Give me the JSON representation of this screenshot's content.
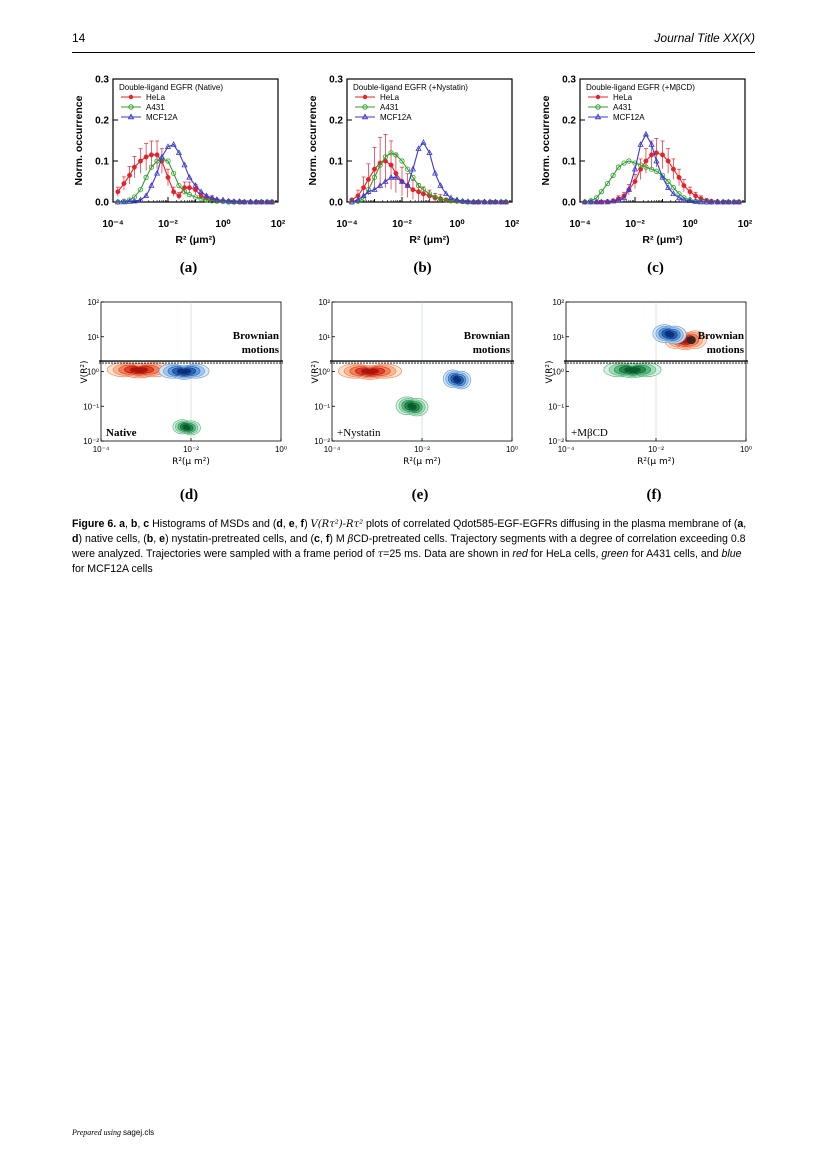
{
  "header": {
    "page_number": "14",
    "journal": "Journal Title XX(X)"
  },
  "footer": {
    "prepared": "Prepared using ",
    "cls": "sagej.cls"
  },
  "caption": {
    "label": "Figure 6.",
    "text": [
      {
        "t": "b",
        "v": "a"
      },
      {
        "t": "n",
        "v": ", "
      },
      {
        "t": "b",
        "v": "b"
      },
      {
        "t": "n",
        "v": ", "
      },
      {
        "t": "b",
        "v": "c"
      },
      {
        "t": "n",
        "v": " Histograms of MSDs and ("
      },
      {
        "t": "b",
        "v": "d"
      },
      {
        "t": "n",
        "v": ", "
      },
      {
        "t": "b",
        "v": "e"
      },
      {
        "t": "n",
        "v": ", "
      },
      {
        "t": "b",
        "v": "f"
      },
      {
        "t": "n",
        "v": ") "
      },
      {
        "t": "m",
        "v": "V(Rτ²)-Rτ²"
      },
      {
        "t": "n",
        "v": " plots of correlated Qdot585-EGF-EGFRs diffusing in the plasma membrane of ("
      },
      {
        "t": "b",
        "v": "a"
      },
      {
        "t": "n",
        "v": ", "
      },
      {
        "t": "b",
        "v": "d"
      },
      {
        "t": "n",
        "v": ") native cells, ("
      },
      {
        "t": "b",
        "v": "b"
      },
      {
        "t": "n",
        "v": ", "
      },
      {
        "t": "b",
        "v": "e"
      },
      {
        "t": "n",
        "v": ") nystatin-pretreated cells, and ("
      },
      {
        "t": "b",
        "v": "c"
      },
      {
        "t": "n",
        "v": ", "
      },
      {
        "t": "b",
        "v": "f"
      },
      {
        "t": "n",
        "v": ") M "
      },
      {
        "t": "m",
        "v": "β"
      },
      {
        "t": "n",
        "v": "CD-pretreated cells. Trajectory segments with a degree of correlation exceeding 0.8 were analyzed. Trajectories were sampled with a frame period of "
      },
      {
        "t": "m",
        "v": "τ"
      },
      {
        "t": "n",
        "v": "=25 ms. Data are shown in "
      },
      {
        "t": "i",
        "v": "red"
      },
      {
        "t": "n",
        "v": " for HeLa cells, "
      },
      {
        "t": "i",
        "v": "green"
      },
      {
        "t": "n",
        "v": " for A431 cells, and "
      },
      {
        "t": "i",
        "v": "blue"
      },
      {
        "t": "n",
        "v": " for MCF12A cells"
      }
    ]
  },
  "colors": {
    "hela": "#e8202a",
    "a431": "#2ca02c",
    "mcf12a": "#3a3ad0"
  },
  "chart_data": [
    {
      "panel": "(a)",
      "type": "line",
      "legend_title": "Double-ligand EGFR (Native)",
      "xlabel": "R² (μm²)",
      "ylabel": "Norm. occurrence",
      "xscale": "log",
      "xlim": [
        0.0001,
        100
      ],
      "ylim": [
        0,
        0.3
      ],
      "xticks": [
        "10⁻⁴",
        "10⁻²",
        "10⁰",
        "10²"
      ],
      "yticks": [
        "0.0",
        "0.1",
        "0.2",
        "0.3"
      ],
      "legend_position": "top-left",
      "series": [
        {
          "name": "HeLa",
          "x": [
            0.00015,
            0.00025,
            0.0004,
            0.0006,
            0.001,
            0.0016,
            0.0025,
            0.004,
            0.006,
            0.01,
            0.016,
            0.025,
            0.04,
            0.06,
            0.1,
            0.16,
            0.25,
            0.4,
            0.6,
            1,
            1.6,
            2.5,
            4,
            6,
            10,
            16,
            25,
            40,
            60
          ],
          "y": [
            0.025,
            0.045,
            0.065,
            0.085,
            0.1,
            0.11,
            0.115,
            0.115,
            0.1,
            0.06,
            0.025,
            0.015,
            0.035,
            0.035,
            0.03,
            0.015,
            0.01,
            0.008,
            0.005,
            0.003,
            0.002,
            0.001,
            0.001,
            0,
            0,
            0,
            0,
            0,
            0
          ]
        },
        {
          "name": "A431",
          "x": [
            0.00015,
            0.00025,
            0.0004,
            0.0006,
            0.001,
            0.0016,
            0.0025,
            0.004,
            0.006,
            0.01,
            0.016,
            0.025,
            0.04,
            0.06,
            0.1,
            0.16,
            0.25,
            0.4,
            0.6,
            1,
            1.6,
            2.5,
            4,
            6,
            10,
            16,
            25,
            40,
            60
          ],
          "y": [
            0,
            0.002,
            0.005,
            0.012,
            0.03,
            0.06,
            0.085,
            0.1,
            0.105,
            0.1,
            0.07,
            0.04,
            0.025,
            0.018,
            0.012,
            0.008,
            0.005,
            0.003,
            0.002,
            0.001,
            0,
            0,
            0,
            0,
            0,
            0,
            0,
            0,
            0
          ]
        },
        {
          "name": "MCF12A",
          "x": [
            0.00015,
            0.00025,
            0.0004,
            0.0006,
            0.001,
            0.0016,
            0.0025,
            0.004,
            0.006,
            0.01,
            0.016,
            0.025,
            0.04,
            0.06,
            0.1,
            0.16,
            0.25,
            0.4,
            0.6,
            1,
            1.6,
            2.5,
            4,
            6,
            10,
            16,
            25,
            40,
            60
          ],
          "y": [
            0,
            0,
            0.001,
            0.002,
            0.005,
            0.015,
            0.04,
            0.07,
            0.11,
            0.135,
            0.14,
            0.12,
            0.09,
            0.06,
            0.04,
            0.025,
            0.015,
            0.01,
            0.006,
            0.004,
            0.002,
            0.001,
            0.001,
            0,
            0,
            0,
            0,
            0,
            0
          ]
        }
      ]
    },
    {
      "panel": "(b)",
      "type": "line",
      "legend_title": "Double-ligand EGFR (+Nystatin)",
      "xlabel": "R² (μm²)",
      "ylabel": "Norm. occurrence",
      "xscale": "log",
      "xlim": [
        0.0001,
        100
      ],
      "ylim": [
        0,
        0.3
      ],
      "xticks": [
        "10⁻⁴",
        "10⁻²",
        "10⁰",
        "10²"
      ],
      "yticks": [
        "0.0",
        "0.1",
        "0.2",
        "0.3"
      ],
      "legend_position": "top-left",
      "series": [
        {
          "name": "HeLa",
          "x": [
            0.00015,
            0.00025,
            0.0004,
            0.0006,
            0.001,
            0.0016,
            0.0025,
            0.004,
            0.006,
            0.01,
            0.016,
            0.025,
            0.04,
            0.06,
            0.1,
            0.16,
            0.25,
            0.4,
            0.6,
            1,
            1.6,
            2.5,
            4,
            6,
            10,
            16,
            25,
            40,
            60
          ],
          "y": [
            0.005,
            0.015,
            0.035,
            0.055,
            0.08,
            0.095,
            0.1,
            0.09,
            0.07,
            0.05,
            0.04,
            0.03,
            0.025,
            0.02,
            0.015,
            0.01,
            0.008,
            0.005,
            0.003,
            0.002,
            0.001,
            0,
            0,
            0,
            0,
            0,
            0,
            0,
            0
          ]
        },
        {
          "name": "A431",
          "x": [
            0.00015,
            0.00025,
            0.0004,
            0.0006,
            0.001,
            0.0016,
            0.0025,
            0.004,
            0.006,
            0.01,
            0.016,
            0.025,
            0.04,
            0.06,
            0.1,
            0.16,
            0.25,
            0.4,
            0.6,
            1,
            1.6,
            2.5,
            4,
            6,
            10,
            16,
            25,
            40,
            60
          ],
          "y": [
            0,
            0.002,
            0.008,
            0.03,
            0.06,
            0.09,
            0.11,
            0.12,
            0.115,
            0.1,
            0.08,
            0.06,
            0.04,
            0.03,
            0.02,
            0.012,
            0.008,
            0.005,
            0.003,
            0.002,
            0.001,
            0,
            0,
            0,
            0,
            0,
            0,
            0,
            0
          ]
        },
        {
          "name": "MCF12A",
          "x": [
            0.00015,
            0.00025,
            0.0004,
            0.0006,
            0.001,
            0.0016,
            0.0025,
            0.004,
            0.006,
            0.01,
            0.016,
            0.025,
            0.04,
            0.06,
            0.1,
            0.16,
            0.25,
            0.4,
            0.6,
            1,
            1.6,
            2.5,
            4,
            6,
            10,
            16,
            25,
            40,
            60
          ],
          "y": [
            0,
            0.005,
            0.015,
            0.025,
            0.03,
            0.04,
            0.05,
            0.06,
            0.06,
            0.05,
            0.04,
            0.08,
            0.13,
            0.145,
            0.12,
            0.07,
            0.04,
            0.02,
            0.01,
            0.005,
            0.002,
            0.001,
            0,
            0,
            0,
            0,
            0,
            0,
            0
          ]
        }
      ]
    },
    {
      "panel": "(c)",
      "type": "line",
      "legend_title": "Double-ligand EGFR (+MβCD)",
      "xlabel": "R² (μm²)",
      "ylabel": "Norm. occurrence",
      "xscale": "log",
      "xlim": [
        0.0001,
        100
      ],
      "ylim": [
        0,
        0.3
      ],
      "xticks": [
        "10⁻⁴",
        "10⁻²",
        "10⁰",
        "10²"
      ],
      "yticks": [
        "0.0",
        "0.1",
        "0.2",
        "0.3"
      ],
      "legend_position": "top-left",
      "series": [
        {
          "name": "HeLa",
          "x": [
            0.00015,
            0.00025,
            0.0004,
            0.0006,
            0.001,
            0.0016,
            0.0025,
            0.004,
            0.006,
            0.01,
            0.016,
            0.025,
            0.04,
            0.06,
            0.1,
            0.16,
            0.25,
            0.4,
            0.6,
            1,
            1.6,
            2.5,
            4,
            6,
            10,
            16,
            25,
            40,
            60
          ],
          "y": [
            0,
            0,
            0,
            0,
            0.001,
            0.003,
            0.008,
            0.015,
            0.03,
            0.05,
            0.08,
            0.1,
            0.115,
            0.12,
            0.115,
            0.1,
            0.08,
            0.06,
            0.04,
            0.025,
            0.015,
            0.008,
            0.004,
            0.002,
            0.001,
            0,
            0,
            0,
            0
          ]
        },
        {
          "name": "A431",
          "x": [
            0.00015,
            0.00025,
            0.0004,
            0.0006,
            0.001,
            0.0016,
            0.0025,
            0.004,
            0.006,
            0.01,
            0.016,
            0.025,
            0.04,
            0.06,
            0.1,
            0.16,
            0.25,
            0.4,
            0.6,
            1,
            1.6,
            2.5,
            4,
            6,
            10,
            16,
            25,
            40,
            60
          ],
          "y": [
            0,
            0.003,
            0.01,
            0.025,
            0.045,
            0.065,
            0.085,
            0.095,
            0.1,
            0.095,
            0.09,
            0.085,
            0.08,
            0.075,
            0.065,
            0.05,
            0.035,
            0.02,
            0.01,
            0.005,
            0.002,
            0.001,
            0,
            0,
            0,
            0,
            0,
            0,
            0
          ]
        },
        {
          "name": "MCF12A",
          "x": [
            0.00015,
            0.00025,
            0.0004,
            0.0006,
            0.001,
            0.0016,
            0.0025,
            0.004,
            0.006,
            0.01,
            0.016,
            0.025,
            0.04,
            0.06,
            0.1,
            0.16,
            0.25,
            0.4,
            0.6,
            1,
            1.6,
            2.5,
            4,
            6,
            10,
            16,
            25,
            40,
            60
          ],
          "y": [
            0,
            0,
            0,
            0,
            0,
            0.002,
            0.005,
            0.01,
            0.03,
            0.08,
            0.14,
            0.165,
            0.14,
            0.1,
            0.06,
            0.035,
            0.02,
            0.01,
            0.005,
            0.003,
            0.001,
            0,
            0,
            0,
            0,
            0,
            0,
            0,
            0
          ]
        }
      ]
    },
    {
      "panel": "(d)",
      "type": "heatmap",
      "annotation": "Native",
      "region_label": [
        "Brownian",
        "motions"
      ],
      "xlabel": "R²(μ m²)",
      "ylabel": "V(R²)",
      "xscale": "log",
      "yscale": "log",
      "xlim": [
        0.0001,
        1
      ],
      "ylim": [
        0.01,
        100
      ],
      "xticks": [
        "10⁻⁴",
        "10⁻²",
        "10⁰"
      ],
      "yticks": [
        "10⁻²",
        "10⁻¹",
        "10⁰",
        "10¹",
        "10²"
      ],
      "brownian_threshold": 2,
      "clusters": [
        {
          "name": "HeLa",
          "cx": 0.0007,
          "cy": 1.1,
          "spread_x": 4,
          "spread_y": 1.6
        },
        {
          "name": "A431",
          "cx": 0.008,
          "cy": 0.025,
          "spread_x": 2.2,
          "spread_y": 1.6
        },
        {
          "name": "MCF12A",
          "cx": 0.007,
          "cy": 1.0,
          "spread_x": 3,
          "spread_y": 1.6
        }
      ]
    },
    {
      "panel": "(e)",
      "type": "heatmap",
      "annotation": "+Nystatin",
      "region_label": [
        "Brownian",
        "motions"
      ],
      "xlabel": "R²(μ m²)",
      "ylabel": "V(R²)",
      "xscale": "log",
      "yscale": "log",
      "xlim": [
        0.0001,
        1
      ],
      "ylim": [
        0.01,
        100
      ],
      "xticks": [
        "10⁻⁴",
        "10⁻²",
        "10⁰"
      ],
      "yticks": [
        "10⁻²",
        "10⁻¹",
        "10⁰",
        "10¹",
        "10²"
      ],
      "brownian_threshold": 2,
      "clusters": [
        {
          "name": "HeLa",
          "cx": 0.0007,
          "cy": 1.0,
          "spread_x": 4,
          "spread_y": 1.6
        },
        {
          "name": "A431",
          "cx": 0.006,
          "cy": 0.1,
          "spread_x": 2.5,
          "spread_y": 1.8
        },
        {
          "name": "MCF12A",
          "cx": 0.06,
          "cy": 0.6,
          "spread_x": 2.2,
          "spread_y": 1.8
        }
      ]
    },
    {
      "panel": "(f)",
      "type": "heatmap",
      "annotation": "+MβCD",
      "region_label": [
        "Brownian",
        "motions"
      ],
      "xlabel": "R²(μ m²)",
      "ylabel": "V(R²)",
      "xscale": "log",
      "yscale": "log",
      "xlim": [
        0.0001,
        1
      ],
      "ylim": [
        0.01,
        100
      ],
      "xticks": [
        "10⁻⁴",
        "10⁻²",
        "10⁰"
      ],
      "yticks": [
        "10⁻²",
        "10⁻¹",
        "10⁰",
        "10¹",
        "10²"
      ],
      "brownian_threshold": 2,
      "clusters": [
        {
          "name": "HeLa",
          "cx": 0.045,
          "cy": 8,
          "spread_x": 2.5,
          "spread_y": 1.8
        },
        {
          "name": "A431",
          "cx": 0.003,
          "cy": 1.1,
          "spread_x": 3.5,
          "spread_y": 1.6
        },
        {
          "name": "MCF12A",
          "cx": 0.02,
          "cy": 12,
          "spread_x": 2.6,
          "spread_y": 1.8
        }
      ]
    }
  ]
}
